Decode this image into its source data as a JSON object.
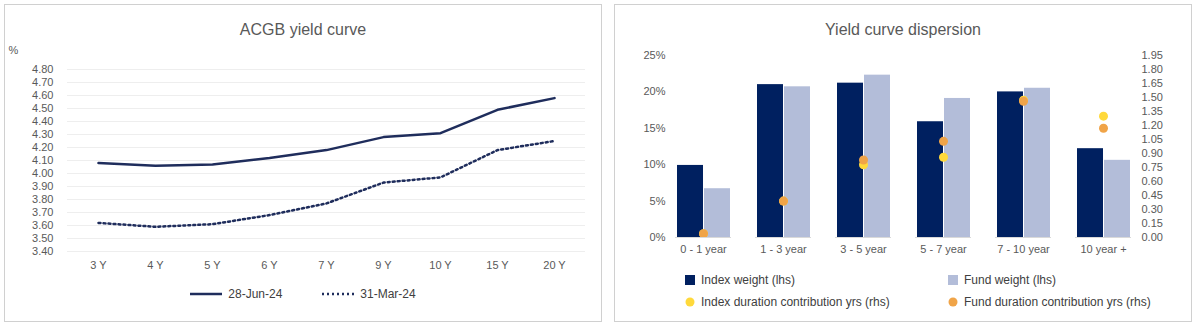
{
  "chart_data": [
    {
      "type": "line",
      "title": "ACGB yield curve",
      "ylabel": "%",
      "categories": [
        "3 Y",
        "4 Y",
        "5 Y",
        "6 Y",
        "7 Y",
        "9 Y",
        "10 Y",
        "15 Y",
        "20 Y"
      ],
      "series": [
        {
          "name": "28-Jun-24",
          "color": "#1f2d5c",
          "line_style": "solid",
          "values": [
            4.08,
            4.06,
            4.07,
            4.12,
            4.18,
            4.28,
            4.31,
            4.49,
            4.58
          ]
        },
        {
          "name": "31-Mar-24",
          "color": "#1f2d5c",
          "line_style": "dotted",
          "values": [
            3.62,
            3.59,
            3.61,
            3.68,
            3.77,
            3.93,
            3.97,
            4.18,
            4.25
          ]
        }
      ],
      "ylim": [
        3.4,
        4.8
      ],
      "yticks": [
        {
          "value": 3.4,
          "label": "3.40"
        },
        {
          "value": 3.5,
          "label": "3.50"
        },
        {
          "value": 3.6,
          "label": "3.60"
        },
        {
          "value": 3.7,
          "label": "3.70"
        },
        {
          "value": 3.8,
          "label": "3.80"
        },
        {
          "value": 3.9,
          "label": "3.90"
        },
        {
          "value": 4.0,
          "label": "4.00"
        },
        {
          "value": 4.1,
          "label": "4.10"
        },
        {
          "value": 4.2,
          "label": "4.20"
        },
        {
          "value": 4.3,
          "label": "4.30"
        },
        {
          "value": 4.4,
          "label": "4.40"
        },
        {
          "value": 4.5,
          "label": "4.50"
        },
        {
          "value": 4.6,
          "label": "4.60"
        },
        {
          "value": 4.7,
          "label": "4.70"
        },
        {
          "value": 4.8,
          "label": "4.80"
        }
      ],
      "grid": true,
      "legend": "bottom"
    },
    {
      "type": "bar",
      "title": "Yield curve dispersion",
      "categories": [
        "0 - 1 year",
        "1 - 3 year",
        "3 - 5 year",
        "5 - 7 year",
        "7 - 10 year",
        "10 year +"
      ],
      "series": [
        {
          "name": "Index weight (lhs)",
          "type": "bar",
          "color": "#002060",
          "values": [
            9.9,
            21.0,
            21.2,
            15.9,
            20.0,
            12.2
          ]
        },
        {
          "name": "Fund weight (lhs)",
          "type": "bar",
          "color": "#b3bdd9",
          "values": [
            6.7,
            20.7,
            22.3,
            19.1,
            20.5,
            10.6
          ]
        },
        {
          "name": "Index duration contribution yrs (rhs)",
          "type": "scatter",
          "axis": "y2",
          "marker": "circle",
          "color": "#ffd93b",
          "values": [
            0.04,
            0.39,
            0.78,
            0.86,
            1.47,
            1.3
          ]
        },
        {
          "name": "Fund duration contribution yrs (rhs)",
          "type": "scatter",
          "axis": "y2",
          "marker": "circle",
          "color": "#f0a448",
          "values": [
            0.04,
            0.39,
            0.83,
            1.03,
            1.46,
            1.17
          ]
        }
      ],
      "ylim": [
        0,
        25
      ],
      "yticks": [
        {
          "value": 0,
          "label": "0%"
        },
        {
          "value": 5,
          "label": "5%"
        },
        {
          "value": 10,
          "label": "10%"
        },
        {
          "value": 15,
          "label": "15%"
        },
        {
          "value": 20,
          "label": "20%"
        },
        {
          "value": 25,
          "label": "25%"
        }
      ],
      "y2lim": [
        0,
        1.95
      ],
      "y2ticks": [
        {
          "value": 0,
          "label": "0.00"
        },
        {
          "value": 0.15,
          "label": "0.15"
        },
        {
          "value": 0.3,
          "label": "0.30"
        },
        {
          "value": 0.45,
          "label": "0.45"
        },
        {
          "value": 0.6,
          "label": "0.60"
        },
        {
          "value": 0.75,
          "label": "0.75"
        },
        {
          "value": 0.9,
          "label": "0.90"
        },
        {
          "value": 1.05,
          "label": "1.05"
        },
        {
          "value": 1.2,
          "label": "1.20"
        },
        {
          "value": 1.35,
          "label": "1.35"
        },
        {
          "value": 1.5,
          "label": "1.50"
        },
        {
          "value": 1.65,
          "label": "1.65"
        },
        {
          "value": 1.8,
          "label": "1.80"
        },
        {
          "value": 1.95,
          "label": "1.95"
        }
      ],
      "grid": false,
      "legend": "bottom"
    }
  ]
}
